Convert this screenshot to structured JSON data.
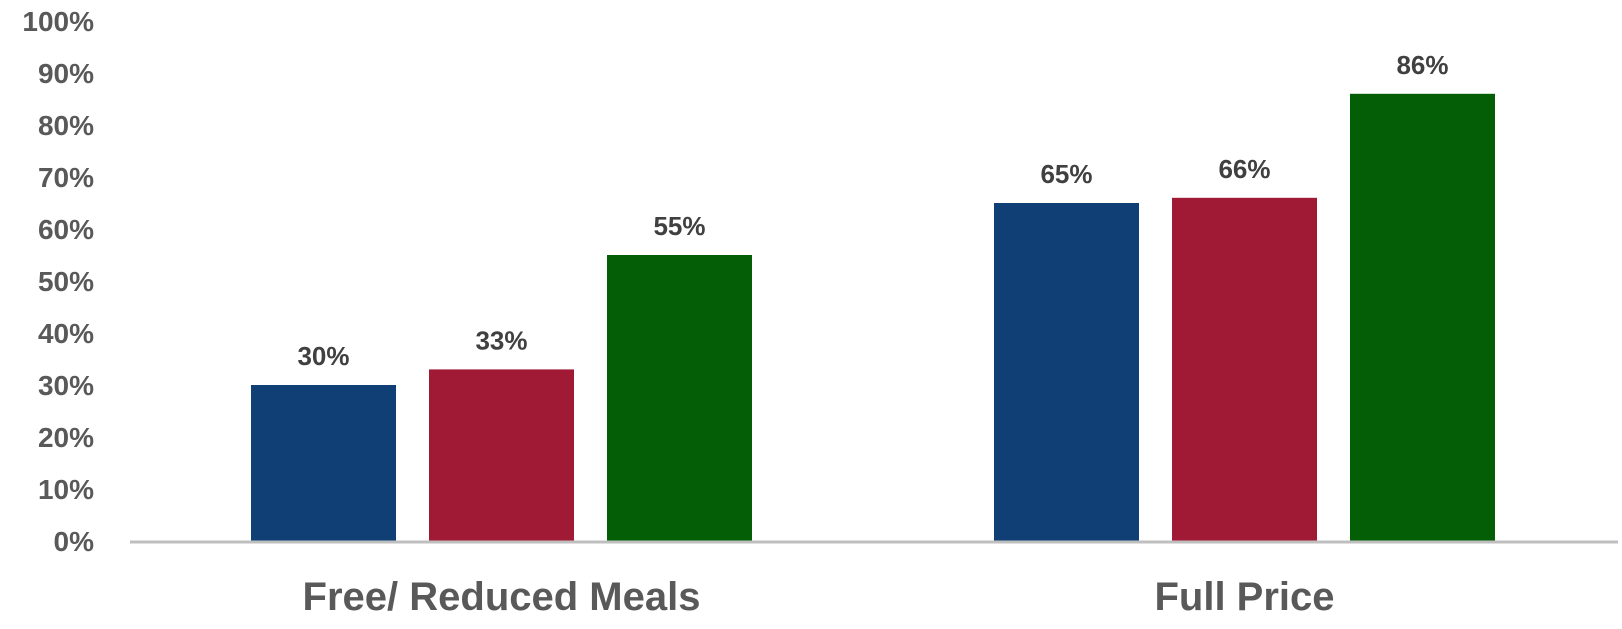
{
  "chart_data": {
    "type": "bar",
    "title": "",
    "xlabel": "",
    "ylabel": "",
    "ylim": [
      0,
      100
    ],
    "y_ticks": [
      0,
      10,
      20,
      30,
      40,
      50,
      60,
      70,
      80,
      90,
      100
    ],
    "y_tick_labels": [
      "0%",
      "10%",
      "20%",
      "30%",
      "40%",
      "50%",
      "60%",
      "70%",
      "80%",
      "90%",
      "100%"
    ],
    "categories": [
      "Free/ Reduced Meals",
      "Full Price"
    ],
    "series": [
      {
        "color": "#0f3f74",
        "values": [
          30,
          65
        ],
        "data_labels": [
          "30%",
          "65%"
        ]
      },
      {
        "color": "#a01a35",
        "values": [
          33,
          66
        ],
        "data_labels": [
          "33%",
          "66%"
        ]
      },
      {
        "color": "#035e06",
        "values": [
          55,
          86
        ],
        "data_labels": [
          "55%",
          "86%"
        ]
      }
    ],
    "grid": false,
    "legend": false,
    "axis_color": "#bfbfbf",
    "label_color": "#595959",
    "data_label_color": "#404040"
  }
}
